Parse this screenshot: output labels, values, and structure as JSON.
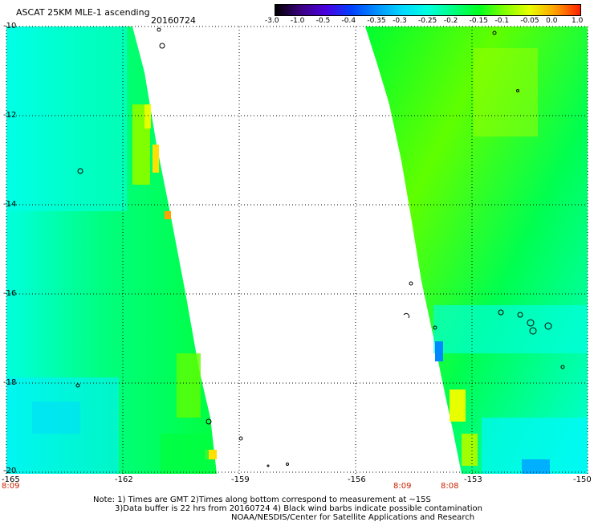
{
  "header": {
    "title": "ASCAT 25KM MLE-1 ascending",
    "date": "20160724"
  },
  "colorbar": {
    "ticks": [
      "-3.0",
      "-1.0",
      "-0.5",
      "-0.4",
      "-0.35",
      "-0.3",
      "-0.25",
      "-0.2",
      "-0.15",
      "-0.1",
      "-0.05",
      "0.0",
      "1.0"
    ],
    "colors": [
      "#000000",
      "#3a0080",
      "#4a00e0",
      "#0040ff",
      "#0090ff",
      "#00d8ff",
      "#00ffe0",
      "#00ff80",
      "#00ff20",
      "#80ff00",
      "#e8ff00",
      "#ffa000",
      "#ff2000"
    ]
  },
  "axes": {
    "lat_labels": [
      "-10",
      "-12",
      "-14",
      "-16",
      "-18",
      "-20"
    ],
    "lon_labels": [
      "-165",
      "-162",
      "-159",
      "-156",
      "-153",
      "-150"
    ],
    "lat_range": [
      -20,
      -10
    ],
    "lon_range": [
      -165,
      -150
    ]
  },
  "times": {
    "left": "8:09",
    "mid": "8:09",
    "right": "8:08"
  },
  "notes": {
    "line1": "Note: 1) Times are GMT 2)Times along bottom correspond to measurement at ~15S",
    "line2": "3)Data buffer is 22 hrs from 20160724 4) Black wind barbs indicate possible contamination",
    "line3": "NOAA/NESDIS/Center for Satellite Applications and Research"
  },
  "colors": {
    "cyan": "#00ffee",
    "green": "#00ff55",
    "lime": "#88ff00",
    "yellow": "#ffff00",
    "blue": "#0088ff"
  }
}
